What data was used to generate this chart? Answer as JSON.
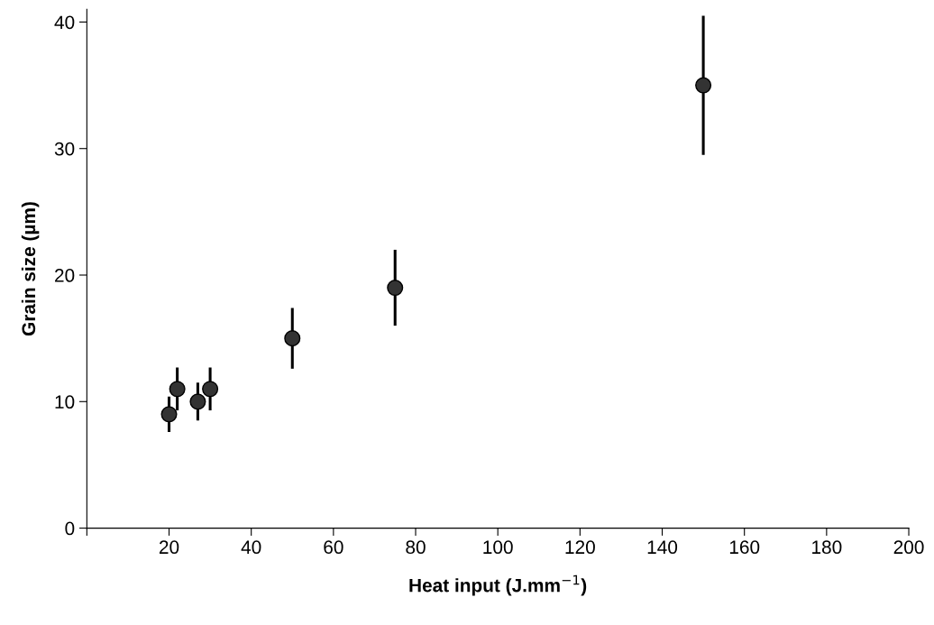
{
  "chart_data": {
    "type": "scatter",
    "xlabel": "Heat input (J.mm$^{−1}$)",
    "ylabel": "Grain size (µm)",
    "x": [
      20,
      22,
      27,
      30,
      50,
      75,
      150
    ],
    "values": [
      9,
      11,
      10,
      11,
      15,
      19,
      35
    ],
    "errors": [
      1.4,
      1.7,
      1.5,
      1.7,
      2.4,
      3.0,
      5.5
    ],
    "color": "#333333",
    "marker": "circle",
    "xlim": [
      0,
      200
    ],
    "xticks": [
      {
        "value": 0,
        "label": null
      },
      20,
      40,
      60,
      80,
      100,
      120,
      140,
      160,
      180,
      200
    ],
    "ylim": [
      0,
      41
    ],
    "yticks": [
      0,
      10,
      20,
      30,
      40
    ],
    "grid": false,
    "legend": false
  }
}
